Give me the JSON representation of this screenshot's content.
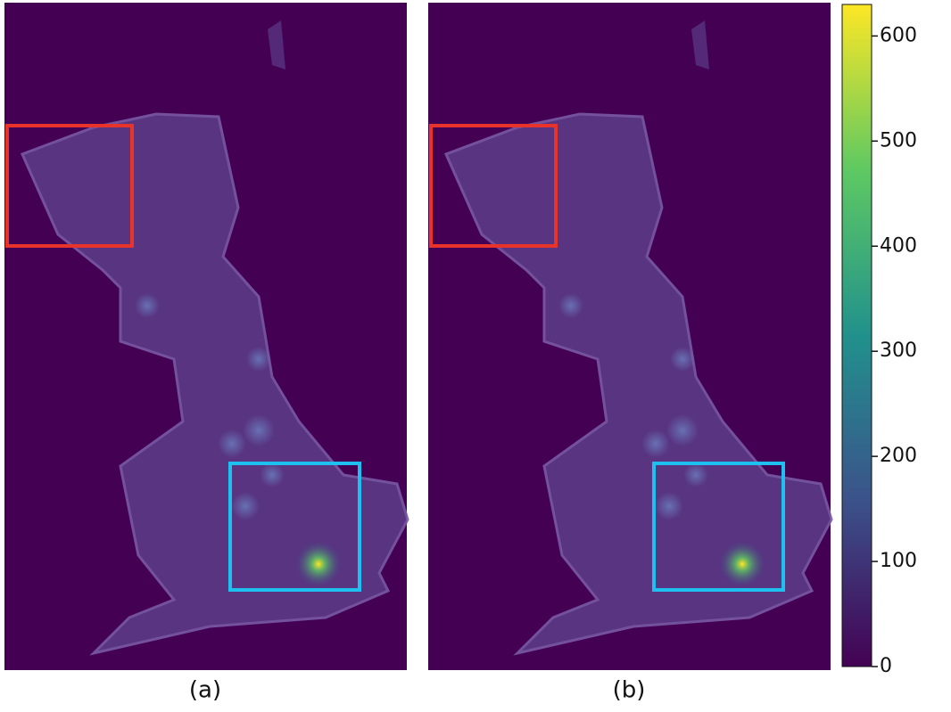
{
  "chart_data": {
    "type": "heatmap",
    "panels": [
      {
        "label": "(a)"
      },
      {
        "label": "(b)"
      }
    ],
    "colorbar": {
      "lim": [
        0,
        630
      ],
      "ticks": [
        0,
        100,
        200,
        300,
        400,
        500,
        600
      ],
      "colors": [
        "#440154",
        "#3b528b",
        "#21918c",
        "#5ec962",
        "#fde725"
      ]
    }
  }
}
